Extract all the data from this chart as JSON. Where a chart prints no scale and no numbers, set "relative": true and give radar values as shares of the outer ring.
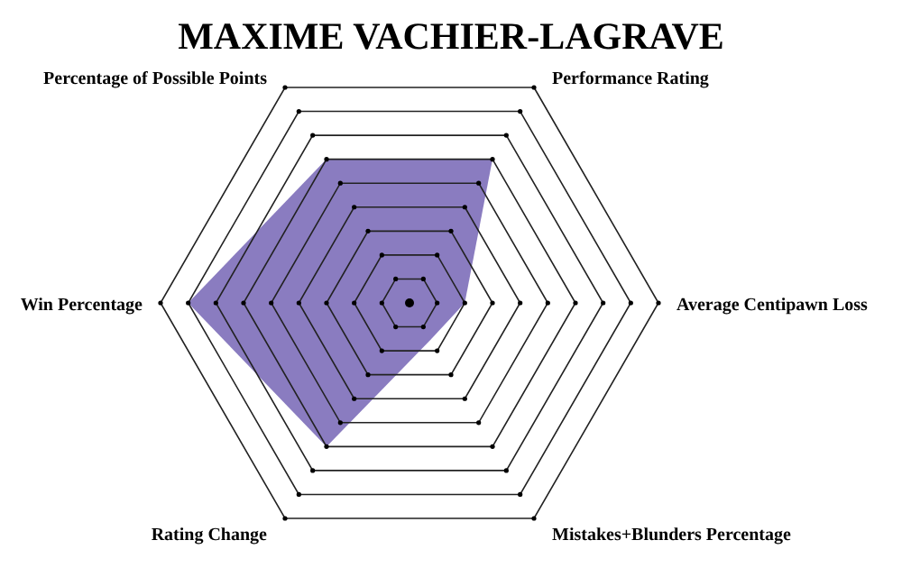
{
  "chart_data": {
    "type": "radar",
    "title": "MAXIME VACHIER-LAGRAVE",
    "relative": true,
    "categories": [
      "Performance Rating",
      "Average Centipawn Loss",
      "Mistakes+Blunders Percentage",
      "Rating Change",
      "Win Percentage",
      "Percentage of Possible Points"
    ],
    "series": [
      {
        "color": "#8a7cc0",
        "values": [
          0.667,
          0.222,
          0.17,
          0.667,
          0.889,
          0.667
        ]
      }
    ]
  }
}
